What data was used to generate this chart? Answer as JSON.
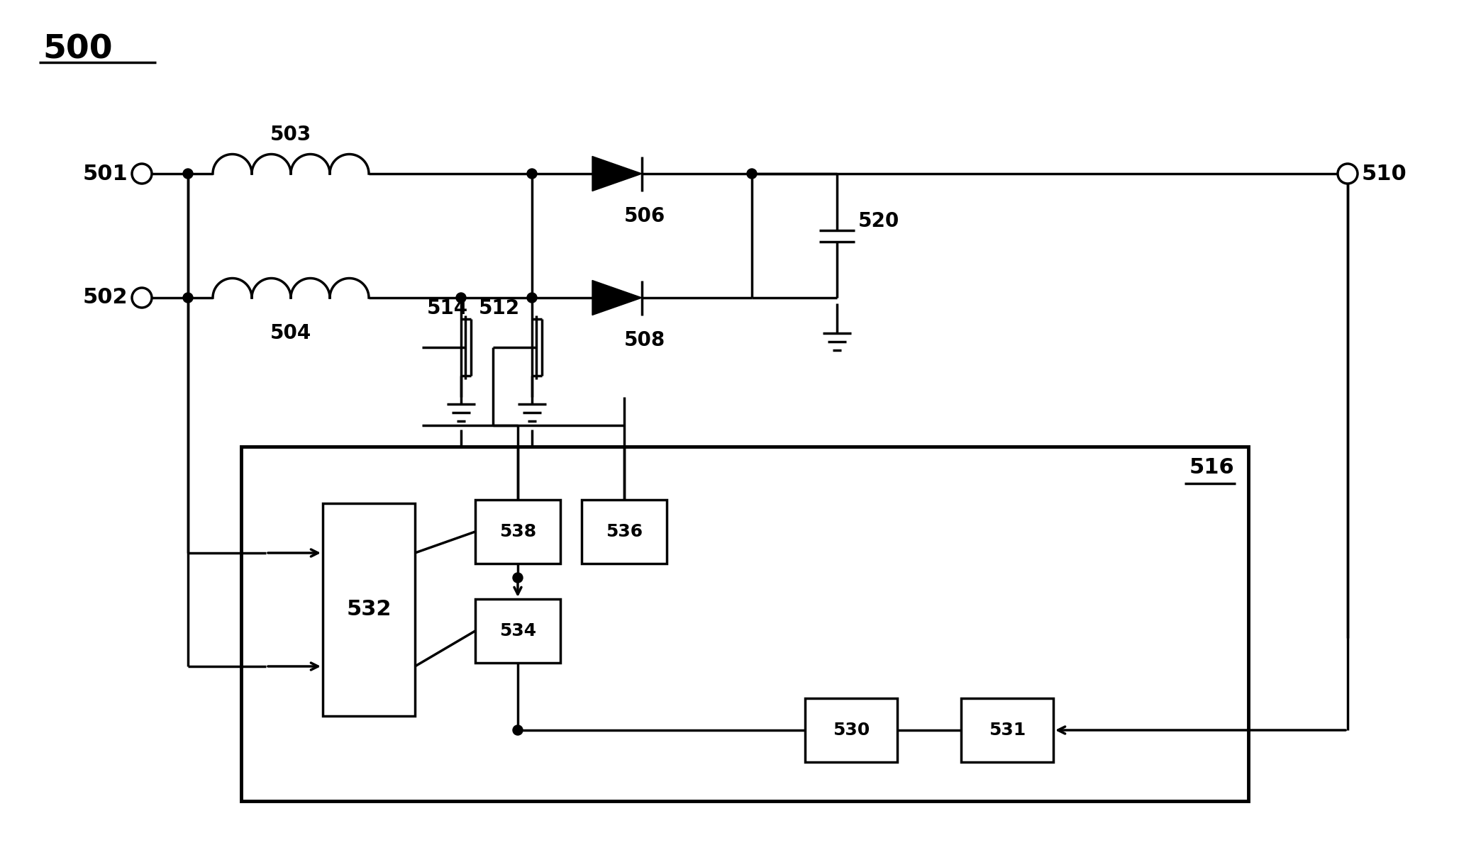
{
  "bg_color": "#ffffff",
  "lc": "#000000",
  "lw": 2.5,
  "fig_w": 20.57,
  "fig_h": 11.92,
  "dpi": 100
}
